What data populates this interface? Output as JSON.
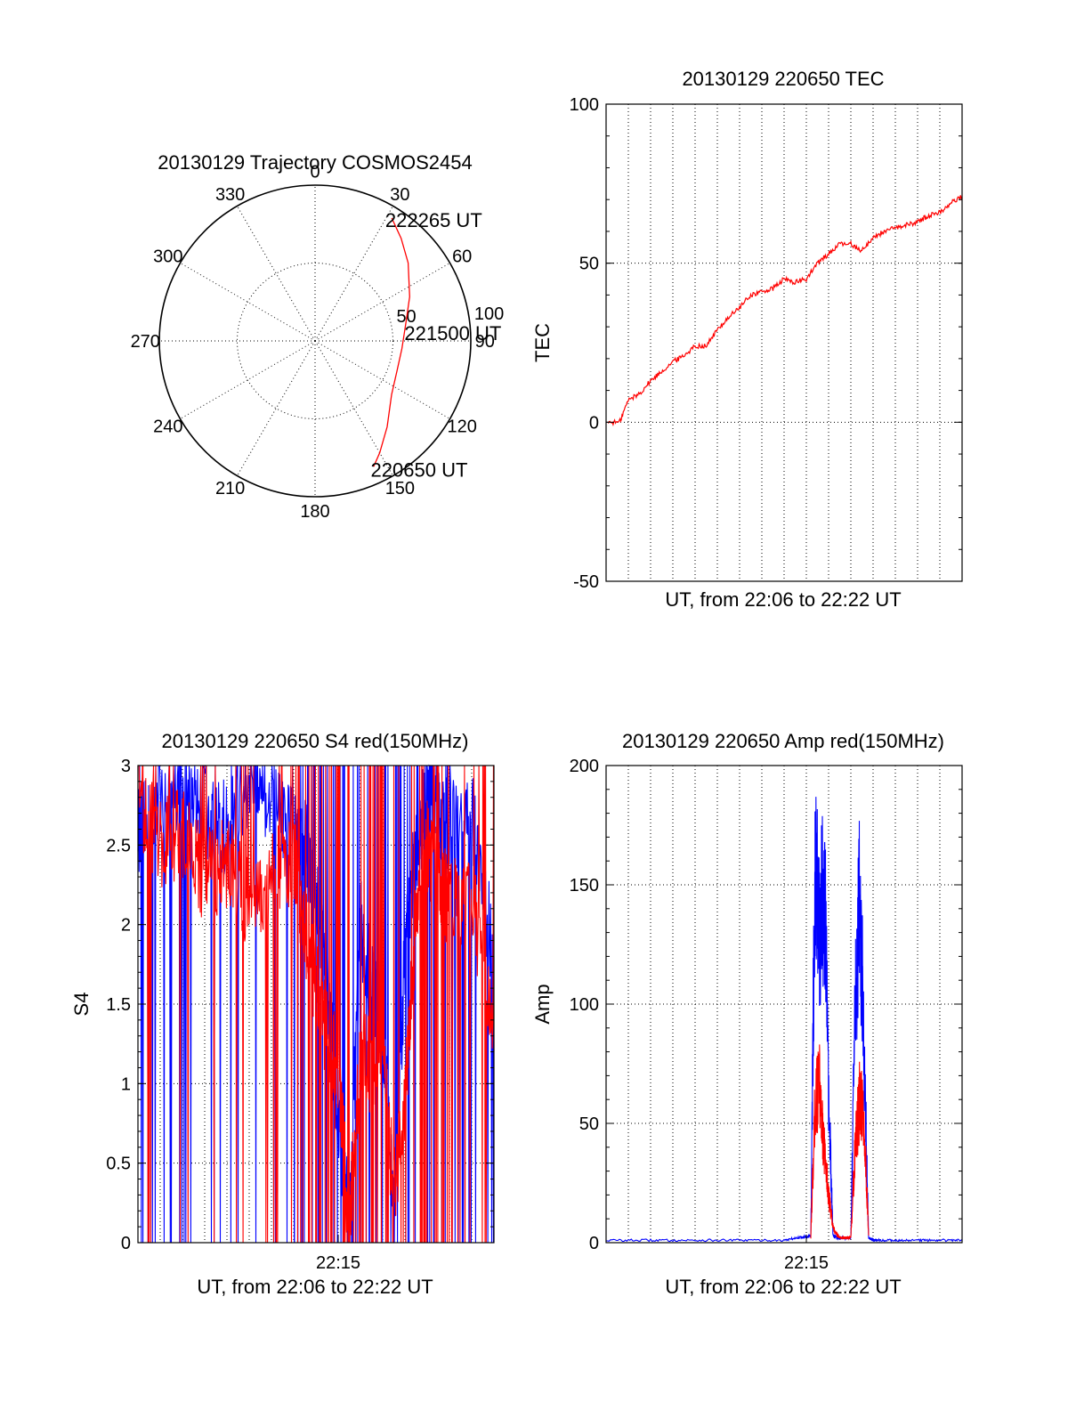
{
  "chart_data": [
    {
      "type": "polar",
      "title": "20130129 Trajectory COSMOS2454",
      "angle_labels": [
        "0",
        "30",
        "60",
        "90",
        "120",
        "150",
        "180",
        "210",
        "240",
        "270",
        "300",
        "330"
      ],
      "radius_labels": [
        "50",
        "100"
      ],
      "rlim": [
        0,
        100
      ],
      "grid": true,
      "series": [
        {
          "color": "#ff0000",
          "azimuth_deg": [
            155,
            150,
            140,
            125,
            110,
            95,
            80,
            65,
            50,
            40,
            32
          ],
          "zenith": [
            89,
            83,
            72,
            60,
            56,
            56,
            59,
            67,
            78,
            86,
            93
          ]
        }
      ],
      "annotations": [
        {
          "text": "222265 UT",
          "azimuth_deg": 31,
          "zenith": 92
        },
        {
          "text": "221500 UT",
          "azimuth_deg": 84,
          "zenith": 60
        },
        {
          "text": "220650 UT",
          "azimuth_deg": 155,
          "zenith": 90
        }
      ]
    },
    {
      "type": "line",
      "title": "20130129 220650 TEC",
      "xlabel": "UT, from 22:06 to 22:22 UT",
      "ylabel": "TEC",
      "ylim": [
        -50,
        100
      ],
      "yticks": [
        "-50",
        "0",
        "50",
        "100"
      ],
      "xlim_minutes": [
        0,
        16
      ],
      "grid": true,
      "series": [
        {
          "color": "#ff0000",
          "x_minutes": [
            0.1,
            0.6,
            1.0,
            1.5,
            2.0,
            2.5,
            3.0,
            3.5,
            4.0,
            4.5,
            5.0,
            5.5,
            6.0,
            6.5,
            7.0,
            7.5,
            8.0,
            8.5,
            9.0,
            9.5,
            10.0,
            10.5,
            11.0,
            11.5,
            12.0,
            12.5,
            13.0,
            13.5,
            14.0,
            14.5,
            15.0,
            15.5,
            16.0
          ],
          "y": [
            0,
            0,
            7,
            9,
            13,
            16,
            19,
            21,
            24,
            24,
            29,
            33,
            36,
            40,
            41,
            42,
            45,
            44,
            45,
            50,
            53,
            56,
            56,
            54,
            58,
            60,
            61,
            62,
            63,
            65,
            66,
            69,
            71
          ]
        }
      ]
    },
    {
      "type": "line",
      "title": "20130129 220650 S4 red(150MHz)",
      "xlabel": "UT, from 22:06 to 22:22 UT",
      "ylabel": "S4",
      "ylim": [
        0,
        3
      ],
      "yticks": [
        "0",
        "0.5",
        "1",
        "1.5",
        "2",
        "2.5",
        "3"
      ],
      "xticks": [
        {
          "label": "22:15",
          "minutes": 9
        }
      ],
      "xlim_minutes": [
        0,
        16
      ],
      "grid": true,
      "series": [
        {
          "color": "#0000ff",
          "x_minutes": [
            0,
            1,
            2,
            3,
            4,
            5,
            6,
            7,
            7.5,
            8,
            8.5,
            9,
            9.5,
            10,
            10.5,
            11,
            11.5,
            12,
            12.5,
            13,
            13.5,
            14,
            15,
            16
          ],
          "y": [
            2.6,
            2.8,
            2.9,
            2.7,
            2.6,
            2.9,
            2.8,
            2.6,
            2.5,
            2.2,
            1.6,
            0.8,
            0.1,
            2.0,
            1.6,
            1.4,
            0.2,
            1.8,
            2.5,
            2.8,
            2.7,
            2.6,
            2.7,
            1.8
          ]
        },
        {
          "color": "#ff0000",
          "x_minutes": [
            0,
            1,
            2,
            3,
            4,
            5,
            6,
            7,
            7.5,
            8,
            8.5,
            9,
            9.5,
            10,
            10.5,
            11,
            11.5,
            12,
            12.5,
            13,
            13.5,
            14,
            15,
            16
          ],
          "y": [
            2.8,
            2.5,
            2.6,
            2.3,
            2.4,
            2.1,
            2.3,
            2.4,
            2.0,
            1.6,
            1.3,
            1.1,
            0.1,
            1.2,
            1.1,
            1.2,
            0.3,
            0.9,
            2.0,
            2.5,
            2.3,
            2.1,
            2.2,
            1.2
          ]
        }
      ]
    },
    {
      "type": "line",
      "title": "20130129 220650 Amp red(150MHz)",
      "xlabel": "UT, from 22:06 to 22:22 UT",
      "ylabel": "Amp",
      "ylim": [
        0,
        200
      ],
      "yticks": [
        "0",
        "50",
        "100",
        "150",
        "200"
      ],
      "xticks": [
        {
          "label": "22:15",
          "minutes": 9
        }
      ],
      "xlim_minutes": [
        0,
        16
      ],
      "grid": true,
      "series": [
        {
          "color": "#0000ff",
          "x_minutes": [
            0,
            2,
            4,
            6,
            8,
            8.6,
            9.2,
            9.4,
            9.6,
            9.8,
            10.0,
            10.2,
            10.4,
            10.6,
            10.8,
            11.0,
            11.2,
            11.4,
            11.6,
            11.8,
            12.0,
            12.2,
            13,
            14,
            15,
            16
          ],
          "y": [
            1,
            1,
            1,
            1,
            1,
            2,
            3,
            170,
            120,
            160,
            60,
            3,
            2,
            2,
            2,
            2,
            100,
            145,
            80,
            2,
            1,
            1,
            1,
            1,
            1,
            1
          ]
        },
        {
          "color": "#ff0000",
          "x_minutes": [
            9.2,
            9.4,
            9.6,
            9.8,
            10.0,
            10.2,
            10.4,
            10.6,
            10.8,
            11.0,
            11.2,
            11.4,
            11.6,
            11.8
          ],
          "y": [
            2,
            60,
            65,
            40,
            20,
            6,
            3,
            2,
            2,
            2,
            40,
            60,
            50,
            3
          ]
        }
      ]
    }
  ]
}
